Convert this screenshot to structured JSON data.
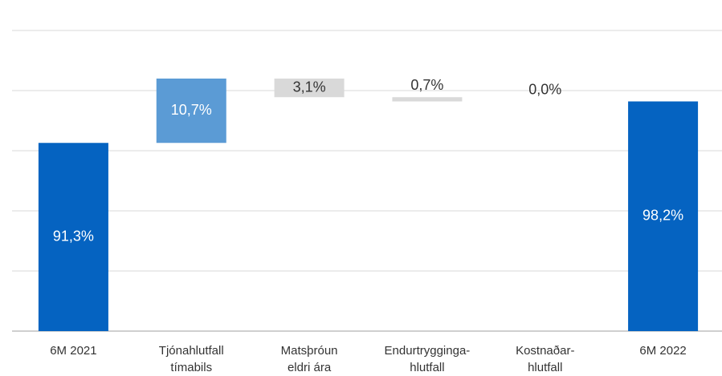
{
  "chart_data": {
    "type": "waterfall",
    "categories": [
      "6M 2021",
      "Tjónahlutfall\ntímabils",
      "Matsþróun\neldri ára",
      "Endurtrygginga-\nhlutfall",
      "Kostnaðar-\nhlutfall",
      "6M 2022"
    ],
    "values": [
      91.3,
      10.7,
      -3.1,
      -0.7,
      0.0,
      98.2
    ],
    "value_labels": [
      "91,3%",
      "10,7%",
      "3,1%",
      "0,7%",
      "0,0%",
      "98,2%"
    ],
    "totals": [
      true,
      false,
      false,
      false,
      false,
      true
    ],
    "colors": {
      "total": "#0563C1",
      "increase": "#5B9BD5",
      "decrease": "#D9D9D9"
    },
    "ylim": [
      60,
      110
    ],
    "yticks": [
      60,
      70,
      80,
      90,
      100,
      110
    ],
    "grid": true,
    "tick_labels": false
  }
}
